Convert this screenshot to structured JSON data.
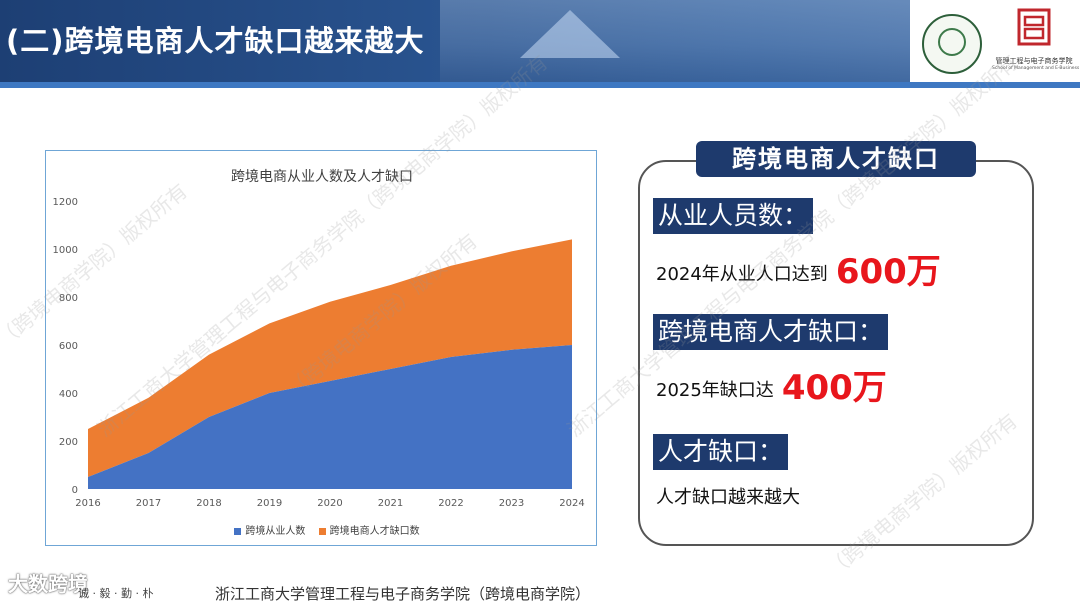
{
  "header": {
    "title": "(二)跨境电商人才缺口越来越大"
  },
  "logos": {
    "school_en": "School of Management and E-Business",
    "school_cn": "管理工程与电子商务学院"
  },
  "chart_data": {
    "type": "area",
    "stacked": true,
    "title": "跨境电商从业人数及人才缺口",
    "categories": [
      "2016",
      "2017",
      "2018",
      "2019",
      "2020",
      "2021",
      "2022",
      "2023",
      "2024"
    ],
    "y_ticks": [
      "0",
      "200",
      "400",
      "600",
      "800",
      "1000",
      "1200"
    ],
    "ylim": [
      0,
      1200
    ],
    "series": [
      {
        "name": "跨境从业人数",
        "color": "#4472c4",
        "values": [
          50,
          150,
          300,
          400,
          450,
          500,
          550,
          580,
          600
        ]
      },
      {
        "name": "跨境电商人才缺口数",
        "color": "#ed7d31",
        "values": [
          200,
          230,
          260,
          290,
          330,
          350,
          380,
          410,
          440
        ]
      }
    ],
    "legend_position": "bottom",
    "grid": false
  },
  "info": {
    "heading": "跨境电商人才缺口",
    "s1_label": "从业人员数：",
    "s1_text": "2024年从业人口达到",
    "s1_value": "600万",
    "s2_label": "跨境电商人才缺口：",
    "s2_text": "2025年缺口达",
    "s2_value": "400万",
    "s3_label": "人才缺口：",
    "s3_text": "人才缺口越来越大"
  },
  "footer": {
    "motto": "诚 · 毅 · 勤 · 朴",
    "text": "浙江工商大学管理工程与电子商务学院（跨境电商学院）",
    "weibo": "大数跨境"
  },
  "watermarks": {
    "text1": "浙江工商大学管理工程与电子商务学院（跨境电商学院）版权所有",
    "text2": "（跨境电商学院）版权所有"
  }
}
